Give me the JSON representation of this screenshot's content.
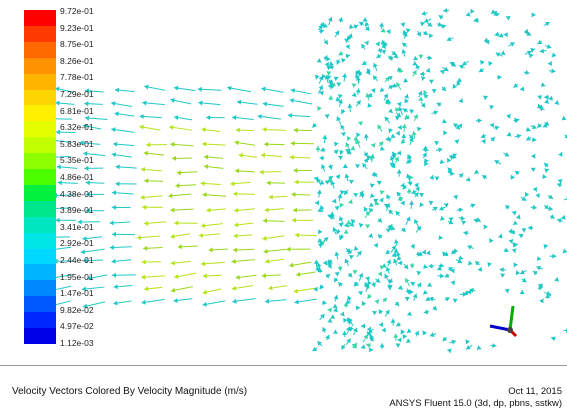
{
  "legend": {
    "ticks": [
      "9.72e-01",
      "9.23e-01",
      "8.75e-01",
      "8.26e-01",
      "7.78e-01",
      "7.29e-01",
      "6.81e-01",
      "6.32e-01",
      "5.83e-01",
      "5.35e-01",
      "4.86e-01",
      "4.38e-01",
      "3.89e-01",
      "3.41e-01",
      "2.92e-01",
      "2.44e-01",
      "1.95e-01",
      "1.47e-01",
      "9.82e-02",
      "4.97e-02",
      "1.12e-03"
    ],
    "colors": [
      "#ff0000",
      "#ff3a00",
      "#ff6a00",
      "#ff9200",
      "#ffb400",
      "#ffd400",
      "#fff000",
      "#e6ff00",
      "#c2ff00",
      "#8cff00",
      "#4cff00",
      "#00f03c",
      "#00e68a",
      "#00e6c0",
      "#00e6e6",
      "#00d8ff",
      "#00b4ff",
      "#0088ff",
      "#0058ff",
      "#0028ff",
      "#0000e6"
    ]
  },
  "footer": {
    "title": "Velocity Vectors Colored By Velocity Magnitude (m/s)",
    "date": "Oct 11, 2015",
    "solver": "ANSYS Fluent 15.0 (3d, dp, pbns, sstkw)"
  },
  "field": {
    "arrow_color": "#1fc7c7",
    "accent_color": "#9ad61a"
  },
  "triad": {
    "x_color": "#cc0000",
    "y_color": "#00aa00",
    "z_color": "#0000cc"
  }
}
